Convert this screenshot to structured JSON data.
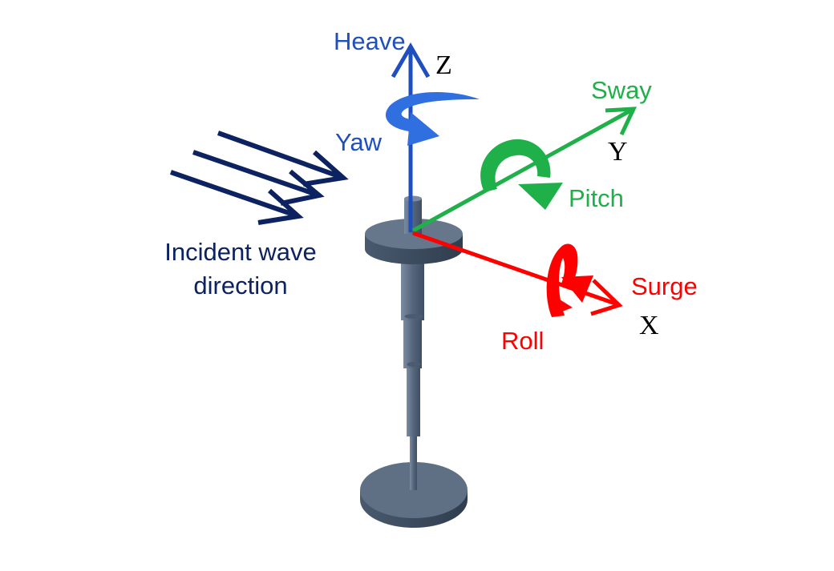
{
  "labels": {
    "heave": "Heave",
    "z_axis": "Z",
    "yaw": "Yaw",
    "sway": "Sway",
    "y_axis": "Y",
    "pitch": "Pitch",
    "surge": "Surge",
    "x_axis": "X",
    "roll": "Roll",
    "incident_line1": "Incident wave",
    "incident_line2": "direction"
  },
  "colors": {
    "heave_axis": "#1f4fbf",
    "yaw_arrow": "#2f6fe0",
    "sway_axis": "#1fb04a",
    "surge_axis": "#ff0000",
    "wave_arrows": "#0d2260",
    "structure": "#5e6f84",
    "axis_letters": "#000000"
  },
  "icons": {
    "heave": "straight-arrow-icon",
    "yaw": "rotation-arrow-icon",
    "pitch": "rotation-arrow-icon",
    "roll": "rotation-arrow-icon",
    "wave": "chevron-arrow-icon"
  }
}
